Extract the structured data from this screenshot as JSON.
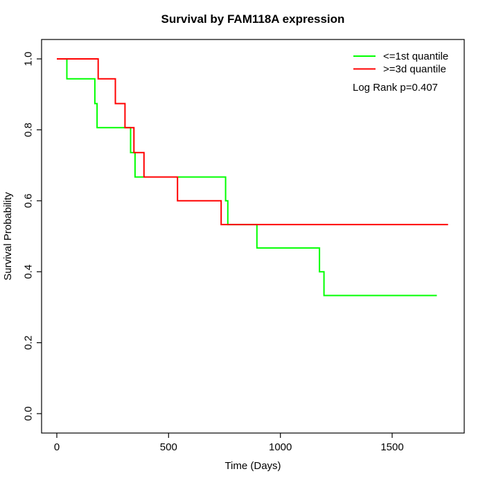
{
  "chart_data": {
    "type": "line",
    "subtype": "kaplan-meier-survival-step",
    "title": "Survival by FAM118A expression",
    "xlabel": "Time (Days)",
    "ylabel": "Survival Probability",
    "xlim": [
      0,
      1750
    ],
    "ylim": [
      0.0,
      1.0
    ],
    "xticks": [
      "0",
      "500",
      "1000",
      "1500"
    ],
    "yticks": [
      "0.0",
      "0.2",
      "0.4",
      "0.6",
      "0.8",
      "1.0"
    ],
    "grid": false,
    "legend_position": "top-right-inside",
    "annotation": "Log Rank p=0.407",
    "axis_color": "#000000",
    "background_color": "#ffffff",
    "series": [
      {
        "name": "<=1st quantile",
        "color": "#00ff00",
        "points": [
          [
            0,
            1.0
          ],
          [
            45,
            1.0
          ],
          [
            45,
            0.944
          ],
          [
            170,
            0.944
          ],
          [
            170,
            0.874
          ],
          [
            180,
            0.874
          ],
          [
            180,
            0.806
          ],
          [
            330,
            0.806
          ],
          [
            330,
            0.736
          ],
          [
            350,
            0.736
          ],
          [
            350,
            0.667
          ],
          [
            755,
            0.667
          ],
          [
            755,
            0.6
          ],
          [
            765,
            0.6
          ],
          [
            765,
            0.533
          ],
          [
            895,
            0.533
          ],
          [
            895,
            0.467
          ],
          [
            1175,
            0.467
          ],
          [
            1175,
            0.4
          ],
          [
            1195,
            0.4
          ],
          [
            1195,
            0.333
          ],
          [
            1700,
            0.333
          ]
        ]
      },
      {
        "name": ">=3d quantile",
        "color": "#ff0000",
        "points": [
          [
            0,
            1.0
          ],
          [
            185,
            1.0
          ],
          [
            185,
            0.944
          ],
          [
            262,
            0.944
          ],
          [
            262,
            0.874
          ],
          [
            305,
            0.874
          ],
          [
            305,
            0.806
          ],
          [
            345,
            0.806
          ],
          [
            345,
            0.736
          ],
          [
            390,
            0.736
          ],
          [
            390,
            0.667
          ],
          [
            540,
            0.667
          ],
          [
            540,
            0.6
          ],
          [
            735,
            0.6
          ],
          [
            735,
            0.533
          ],
          [
            1750,
            0.533
          ]
        ]
      }
    ]
  }
}
